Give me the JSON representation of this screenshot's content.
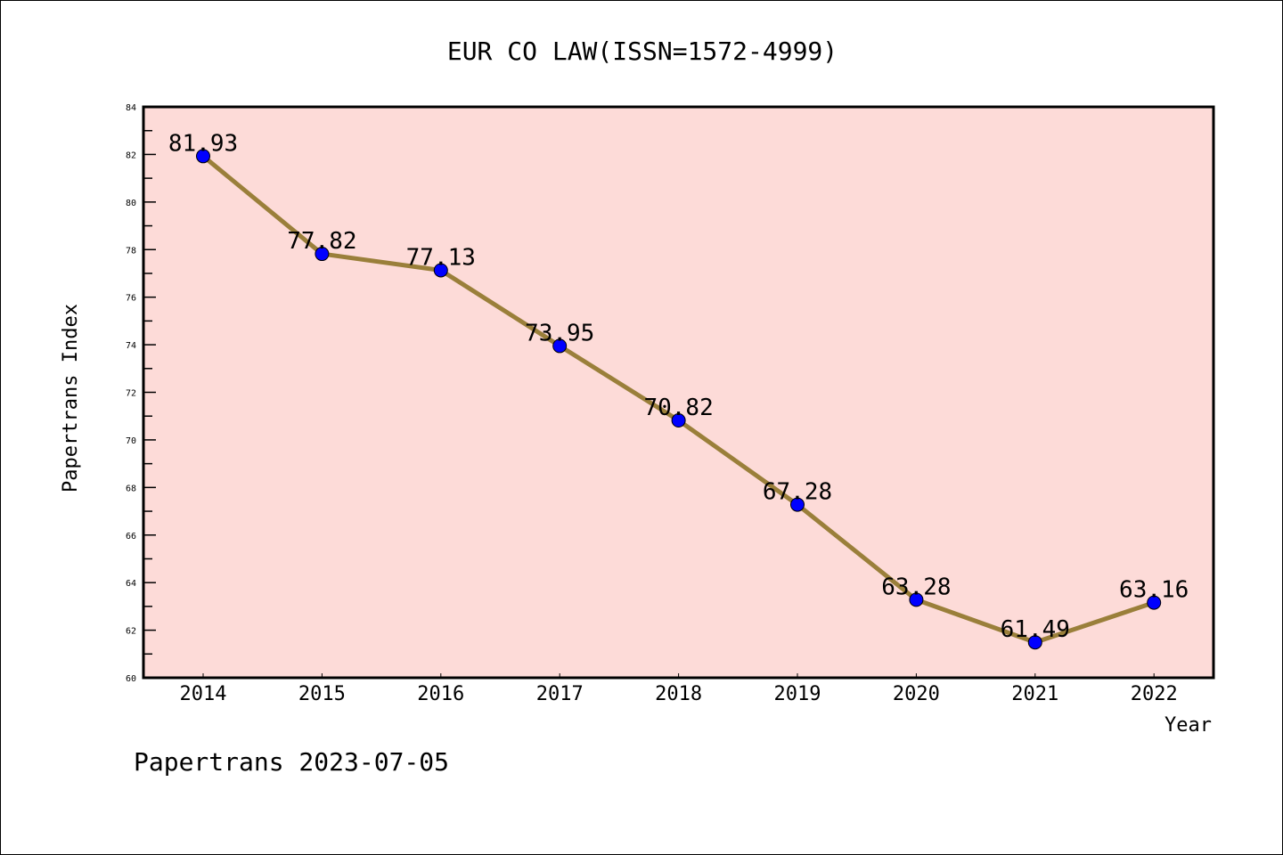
{
  "chart_data": {
    "type": "line",
    "title": "EUR CO LAW(ISSN=1572-4999)",
    "xlabel": "Year",
    "ylabel": "Papertrans Index",
    "x": [
      "2014",
      "2015",
      "2016",
      "2017",
      "2018",
      "2019",
      "2020",
      "2021",
      "2022"
    ],
    "series": [
      {
        "name": "Papertrans Index",
        "values": [
          81.93,
          77.82,
          77.13,
          73.95,
          70.82,
          67.28,
          63.28,
          61.49,
          63.16
        ]
      }
    ],
    "data_labels": [
      "81.93",
      "77.82",
      "77.13",
      "73.95",
      "70.82",
      "67.28",
      "63.28",
      "61.49",
      "63.16"
    ],
    "ylim": [
      60,
      84
    ],
    "yticks": [
      "60",
      "62",
      "64",
      "66",
      "68",
      "70",
      "72",
      "74",
      "76",
      "78",
      "80",
      "82",
      "84"
    ],
    "grid": false,
    "footer": "Papertrans 2023-07-05",
    "colors": {
      "plot_bg": "#fddbd8",
      "line": "#9a7f3a",
      "marker": "#0000ff"
    }
  }
}
